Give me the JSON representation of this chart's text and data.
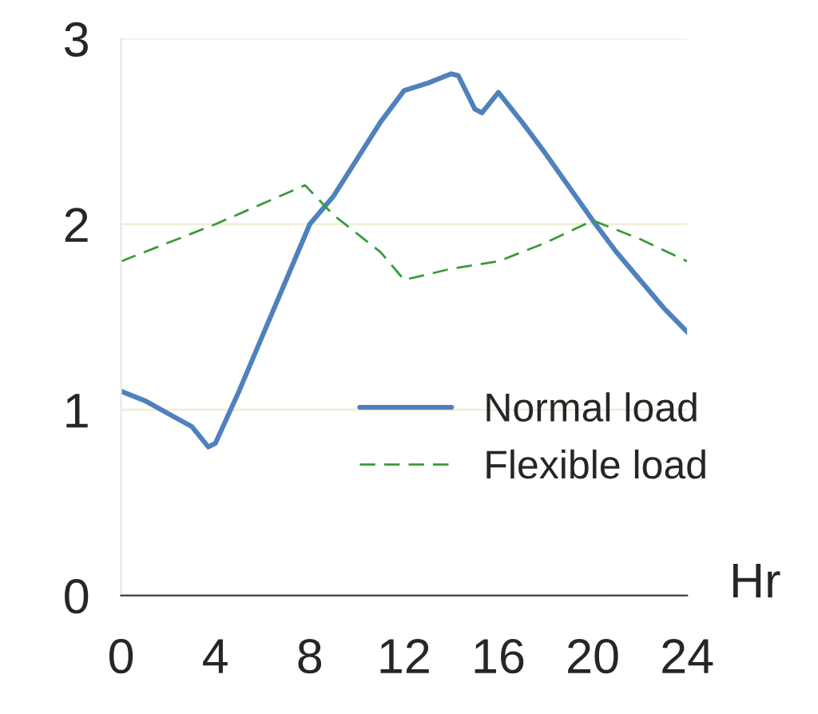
{
  "chart_data": {
    "type": "line",
    "xlabel": "Hr",
    "x": [
      0,
      1,
      2,
      3,
      3.7,
      4,
      5,
      6,
      7,
      8,
      9,
      10,
      11,
      12,
      13,
      14,
      14.3,
      15,
      15.3,
      16,
      17,
      18,
      19,
      20,
      21,
      22,
      23,
      24
    ],
    "series": [
      {
        "name": "Normal load",
        "color": "#4f81bd",
        "line_style": "solid",
        "values": [
          1.1,
          1.05,
          0.98,
          0.91,
          0.8,
          0.82,
          1.1,
          1.4,
          1.7,
          2.0,
          2.15,
          2.35,
          2.55,
          2.72,
          2.76,
          2.81,
          2.8,
          2.62,
          2.6,
          2.71,
          2.55,
          2.38,
          2.2,
          2.02,
          1.85,
          1.7,
          1.55,
          1.42
        ]
      },
      {
        "name": "Flexible load",
        "color": "#3a9a3a",
        "line_style": "dashed",
        "x": [
          0,
          4,
          7.8,
          9,
          10,
          11,
          12,
          14,
          16,
          18,
          20,
          22,
          24
        ],
        "values": [
          1.8,
          2.0,
          2.21,
          2.05,
          1.95,
          1.85,
          1.7,
          1.76,
          1.8,
          1.9,
          2.02,
          1.92,
          1.8
        ]
      }
    ],
    "xlim": [
      0,
      24
    ],
    "xticks": [
      0,
      4,
      8,
      12,
      16,
      20,
      24
    ],
    "ylim": [
      0,
      3
    ],
    "yticks": [
      0,
      1,
      2,
      3
    ],
    "grid": "y",
    "legend": "center right",
    "marker": "none"
  }
}
